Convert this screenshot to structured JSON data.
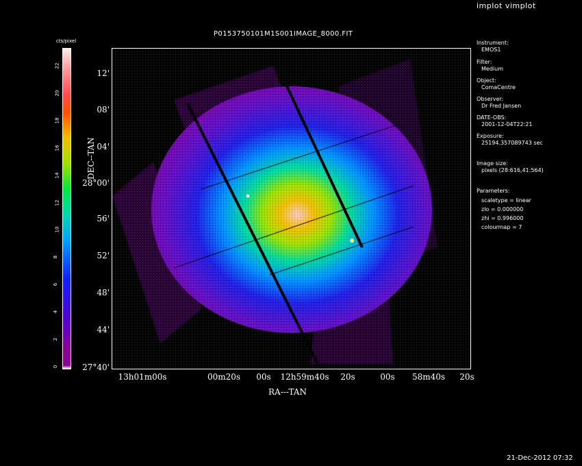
{
  "window": {
    "title": "implot vimplot",
    "timestamp": "21-Dec-2012 07:32"
  },
  "plot": {
    "title": "P0153750101M1S001IMAGE_8000.FIT",
    "xlabel": "RA---TAN",
    "ylabel": "DEC--TAN",
    "yticks": [
      "12'",
      "08'",
      "04'",
      "28°00'",
      "56'",
      "52'",
      "48'",
      "44'",
      "27°40'"
    ],
    "xticks": [
      "13h01m00s",
      "00m20s",
      "00s",
      "12h59m40s",
      "20s",
      "00s",
      "58m40s",
      "20s"
    ]
  },
  "colorbar": {
    "label": "cts/pixel",
    "ticks": [
      "0",
      "2",
      "4",
      "6",
      "8",
      "10",
      "12",
      "14",
      "16",
      "18",
      "20",
      "22"
    ],
    "colormap_colors": [
      "#8a0090",
      "#5a00c8",
      "#1020ff",
      "#00a0ff",
      "#00e840",
      "#f0c000",
      "#ff5000",
      "#ffa0a0"
    ]
  },
  "info": {
    "instrument_label": "Instrument:",
    "instrument_value": "EMOS1",
    "filter_label": "Filter:",
    "filter_value": "Medium",
    "object_label": "Object:",
    "object_value": "ComaCentre",
    "observer_label": "Observer:",
    "observer_value": "Dr Fred Jansen",
    "date_label": "DATE-OBS:",
    "date_value": "2001-12-04T22:21",
    "exposure_label": "Exposure:",
    "exposure_value": "25194.357089743 sec",
    "imagesize_label": "Image size:",
    "imagesize_value": "pixels (28:616,41:564)",
    "parameters_label": "Parameters:",
    "param_scaletype": "scaletype = linear",
    "param_zlo": "zlo = 0.000000",
    "param_zhi": "zhi = 0.996000",
    "param_colourmap": "colourmap =   7"
  }
}
